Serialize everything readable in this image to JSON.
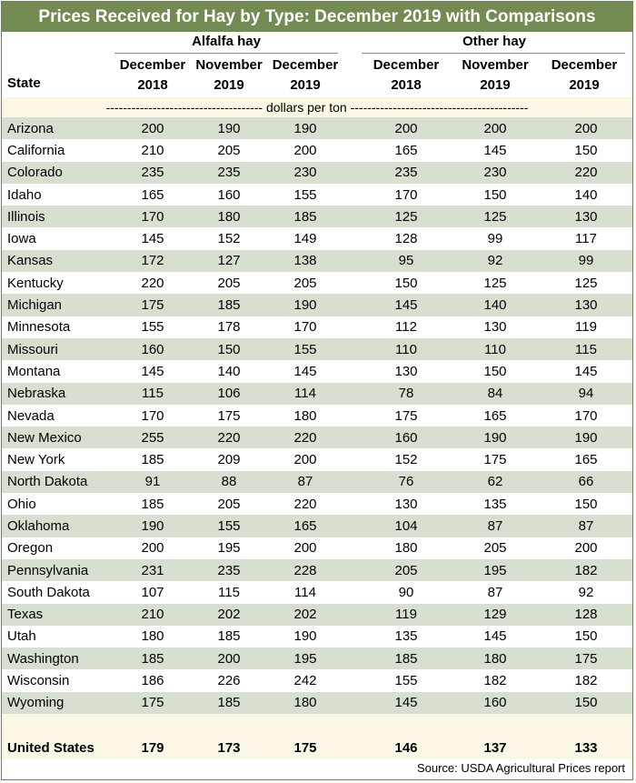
{
  "title": "Prices Received for Hay by Type: December 2019 with Comparisons",
  "group_headers": [
    "Alfalfa hay",
    "Other hay"
  ],
  "state_header": "State",
  "column_headers": [
    {
      "month": "December",
      "year": "2018"
    },
    {
      "month": "November",
      "year": "2019"
    },
    {
      "month": "December",
      "year": "2019"
    },
    {
      "month": "December",
      "year": "2018"
    },
    {
      "month": "November",
      "year": "2019"
    },
    {
      "month": "December",
      "year": "2019"
    }
  ],
  "unit_label": "------------------------------------- dollars per ton ------------------------------------------",
  "source": "Source: USDA Agricultural Prices report",
  "colors": {
    "title_bg": "#738a53",
    "row_shade": "#d7dfd0",
    "row_light": "#fbf7e4"
  },
  "chart_data": {
    "type": "table",
    "title": "Prices Received for Hay by Type: December 2019 with Comparisons",
    "columns": [
      "State",
      "Alfalfa hay December 2018",
      "Alfalfa hay November 2019",
      "Alfalfa hay December 2019",
      "Other hay December 2018",
      "Other hay November 2019",
      "Other hay December 2019"
    ],
    "rows": [
      {
        "state": "Arizona",
        "values": [
          "200",
          "190",
          "190",
          "200",
          "200",
          "200"
        ]
      },
      {
        "state": "California",
        "values": [
          "210",
          "205",
          "200",
          "165",
          "145",
          "150"
        ]
      },
      {
        "state": "Colorado",
        "values": [
          "235",
          "235",
          "230",
          "235",
          "230",
          "220"
        ]
      },
      {
        "state": "Idaho",
        "values": [
          "165",
          "160",
          "155",
          "170",
          "150",
          "140"
        ]
      },
      {
        "state": "Illinois",
        "values": [
          "170",
          "180",
          "185",
          "125",
          "125",
          "130"
        ]
      },
      {
        "state": "Iowa",
        "values": [
          "145",
          "152",
          "149",
          "128",
          "99",
          "117"
        ]
      },
      {
        "state": "Kansas",
        "values": [
          "172",
          "127",
          "138",
          "95",
          "92",
          "99"
        ]
      },
      {
        "state": "Kentucky",
        "values": [
          "220",
          "205",
          "205",
          "150",
          "125",
          "125"
        ]
      },
      {
        "state": "Michigan",
        "values": [
          "175",
          "185",
          "190",
          "145",
          "140",
          "130"
        ]
      },
      {
        "state": "Minnesota",
        "values": [
          "155",
          "178",
          "170",
          "112",
          "130",
          "119"
        ]
      },
      {
        "state": "Missouri",
        "values": [
          "160",
          "150",
          "155",
          "110",
          "110",
          "115"
        ]
      },
      {
        "state": "Montana",
        "values": [
          "145",
          "140",
          "145",
          "130",
          "150",
          "145"
        ]
      },
      {
        "state": "Nebraska",
        "values": [
          "115",
          "106",
          "114",
          "78",
          "84",
          "94"
        ]
      },
      {
        "state": "Nevada",
        "values": [
          "170",
          "175",
          "180",
          "175",
          "165",
          "170"
        ]
      },
      {
        "state": "New Mexico",
        "values": [
          "255",
          "220",
          "220",
          "160",
          "190",
          "190"
        ]
      },
      {
        "state": "New York",
        "values": [
          "185",
          "209",
          "200",
          "152",
          "175",
          "165"
        ]
      },
      {
        "state": "North Dakota",
        "values": [
          "91",
          "88",
          "87",
          "76",
          "62",
          "66"
        ]
      },
      {
        "state": "Ohio",
        "values": [
          "185",
          "205",
          "220",
          "130",
          "135",
          "150"
        ]
      },
      {
        "state": "Oklahoma",
        "values": [
          "190",
          "155",
          "165",
          "104",
          "87",
          "87"
        ]
      },
      {
        "state": "Oregon",
        "values": [
          "200",
          "195",
          "200",
          "180",
          "205",
          "200"
        ]
      },
      {
        "state": "Pennsylvania",
        "values": [
          "231",
          "235",
          "228",
          "205",
          "195",
          "182"
        ]
      },
      {
        "state": "South Dakota",
        "values": [
          "107",
          "115",
          "114",
          "90",
          "87",
          "92"
        ]
      },
      {
        "state": "Texas",
        "values": [
          "210",
          "202",
          "202",
          "119",
          "129",
          "128"
        ]
      },
      {
        "state": "Utah",
        "values": [
          "180",
          "185",
          "190",
          "135",
          "145",
          "150"
        ]
      },
      {
        "state": "Washington",
        "values": [
          "185",
          "200",
          "195",
          "185",
          "180",
          "175"
        ]
      },
      {
        "state": "Wisconsin",
        "values": [
          "186",
          "226",
          "242",
          "155",
          "182",
          "182"
        ]
      },
      {
        "state": "Wyoming",
        "values": [
          "175",
          "185",
          "180",
          "145",
          "160",
          "150"
        ]
      }
    ],
    "total": {
      "state": "United States",
      "values": [
        "179",
        "173",
        "175",
        "146",
        "137",
        "133"
      ]
    }
  }
}
